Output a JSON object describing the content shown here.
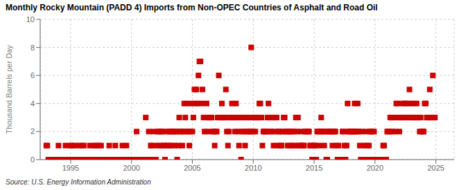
{
  "chart_data": {
    "type": "scatter",
    "title": "Monthly Rocky Mountain (PADD 4) Imports from Non-OPEC Countries of Asphalt and Road Oil",
    "y_label": "Thousand Barrels per Day",
    "annotations": [
      "Source: U.S. Energy Information Administration"
    ],
    "color": "#cc0000",
    "marker": "square",
    "grid": true,
    "xlim": [
      1992.5,
      2026.5
    ],
    "xticks": [
      1995,
      2000,
      2005,
      2010,
      2015,
      2020,
      2025
    ],
    "ylim": [
      0,
      10
    ],
    "yticks": [
      0,
      2,
      4,
      6,
      8,
      10
    ],
    "x": [
      1993.0,
      1993.08,
      1993.17,
      1993.25,
      1993.33,
      1993.42,
      1993.5,
      1993.58,
      1993.67,
      1993.75,
      1993.83,
      1993.92,
      1994.0,
      1994.08,
      1994.17,
      1994.25,
      1994.33,
      1994.42,
      1994.5,
      1994.58,
      1994.67,
      1994.75,
      1994.83,
      1994.92,
      1995.0,
      1995.08,
      1995.17,
      1995.25,
      1995.33,
      1995.42,
      1995.5,
      1995.58,
      1995.67,
      1995.75,
      1995.83,
      1995.92,
      1996.0,
      1996.08,
      1996.17,
      1996.25,
      1996.33,
      1996.42,
      1996.5,
      1996.58,
      1996.67,
      1996.75,
      1996.83,
      1996.92,
      1997.0,
      1997.08,
      1997.17,
      1997.25,
      1997.33,
      1997.42,
      1997.5,
      1997.58,
      1997.67,
      1997.75,
      1997.83,
      1997.92,
      1998.0,
      1998.08,
      1998.17,
      1998.25,
      1998.33,
      1998.42,
      1998.5,
      1998.58,
      1998.67,
      1998.75,
      1998.83,
      1998.92,
      1999.0,
      1999.08,
      1999.17,
      1999.25,
      1999.33,
      1999.42,
      1999.5,
      1999.58,
      1999.67,
      1999.75,
      1999.83,
      1999.92,
      2000.0,
      2000.08,
      2000.17,
      2000.25,
      2000.33,
      2000.42,
      2000.5,
      2000.58,
      2000.67,
      2000.75,
      2000.83,
      2000.92,
      2001.0,
      2001.08,
      2001.17,
      2001.25,
      2001.33,
      2001.42,
      2001.5,
      2001.58,
      2001.67,
      2001.75,
      2001.83,
      2001.92,
      2002.0,
      2002.08,
      2002.17,
      2002.25,
      2002.33,
      2002.42,
      2002.5,
      2002.58,
      2002.67,
      2002.75,
      2002.83,
      2002.92,
      2003.0,
      2003.08,
      2003.17,
      2003.25,
      2003.33,
      2003.42,
      2003.5,
      2003.58,
      2003.67,
      2003.75,
      2003.83,
      2003.92,
      2004.0,
      2004.08,
      2004.17,
      2004.25,
      2004.33,
      2004.42,
      2004.5,
      2004.58,
      2004.67,
      2004.75,
      2004.83,
      2004.92,
      2005.0,
      2005.08,
      2005.17,
      2005.25,
      2005.33,
      2005.42,
      2005.5,
      2005.58,
      2005.67,
      2005.75,
      2005.83,
      2005.92,
      2006.0,
      2006.08,
      2006.17,
      2006.25,
      2006.33,
      2006.42,
      2006.5,
      2006.58,
      2006.67,
      2006.75,
      2006.83,
      2006.92,
      2007.0,
      2007.08,
      2007.17,
      2007.25,
      2007.33,
      2007.42,
      2007.5,
      2007.58,
      2007.67,
      2007.75,
      2007.83,
      2007.92,
      2008.0,
      2008.08,
      2008.17,
      2008.25,
      2008.33,
      2008.42,
      2008.5,
      2008.58,
      2008.67,
      2008.75,
      2008.83,
      2008.92,
      2009.0,
      2009.08,
      2009.17,
      2009.25,
      2009.33,
      2009.42,
      2009.5,
      2009.58,
      2009.67,
      2009.75,
      2009.83,
      2009.92,
      2010.0,
      2010.08,
      2010.17,
      2010.25,
      2010.33,
      2010.42,
      2010.5,
      2010.58,
      2010.67,
      2010.75,
      2010.83,
      2010.92,
      2011.0,
      2011.08,
      2011.17,
      2011.25,
      2011.33,
      2011.42,
      2011.5,
      2011.58,
      2011.67,
      2011.75,
      2011.83,
      2011.92,
      2012.0,
      2012.08,
      2012.17,
      2012.25,
      2012.33,
      2012.42,
      2012.5,
      2012.58,
      2012.67,
      2012.75,
      2012.83,
      2012.92,
      2013.0,
      2013.08,
      2013.17,
      2013.25,
      2013.33,
      2013.42,
      2013.5,
      2013.58,
      2013.67,
      2013.75,
      2013.83,
      2013.92,
      2014.0,
      2014.08,
      2014.17,
      2014.25,
      2014.33,
      2014.42,
      2014.5,
      2014.58,
      2014.67,
      2014.75,
      2014.83,
      2014.92,
      2015.0,
      2015.08,
      2015.17,
      2015.25,
      2015.33,
      2015.42,
      2015.5,
      2015.58,
      2015.67,
      2015.75,
      2015.83,
      2015.92,
      2016.0,
      2016.08,
      2016.17,
      2016.25,
      2016.33,
      2016.42,
      2016.5,
      2016.58,
      2016.67,
      2016.75,
      2016.83,
      2016.92,
      2017.0,
      2017.08,
      2017.17,
      2017.25,
      2017.33,
      2017.42,
      2017.5,
      2017.58,
      2017.67,
      2017.75,
      2017.83,
      2017.92,
      2018.0,
      2018.08,
      2018.17,
      2018.25,
      2018.33,
      2018.42,
      2018.5,
      2018.58,
      2018.67,
      2018.75,
      2018.83,
      2018.92,
      2019.0,
      2019.08,
      2019.17,
      2019.25,
      2019.33,
      2019.42,
      2019.5,
      2019.58,
      2019.67,
      2019.75,
      2019.83,
      2019.92,
      2020.0,
      2020.08,
      2020.17,
      2020.25,
      2020.33,
      2020.42,
      2020.5,
      2020.58,
      2020.67,
      2020.75,
      2020.83,
      2020.92,
      2021.0,
      2021.08,
      2021.17,
      2021.25,
      2021.33,
      2021.42,
      2021.5,
      2021.58,
      2021.67,
      2021.75,
      2021.83,
      2021.92,
      2022.0,
      2022.08,
      2022.17,
      2022.25,
      2022.33,
      2022.42,
      2022.5,
      2022.58,
      2022.67,
      2022.75,
      2022.83,
      2022.92,
      2023.0,
      2023.08,
      2023.17,
      2023.25,
      2023.33,
      2023.42,
      2023.5,
      2023.58,
      2023.67,
      2023.75,
      2023.83,
      2023.92,
      2024.0,
      2024.08,
      2024.17,
      2024.25,
      2024.33,
      2024.42,
      2024.5,
      2024.58,
      2024.67,
      2024.75,
      2024.83,
      2024.92
    ],
    "values": [
      1,
      1,
      0,
      0,
      0,
      0,
      0,
      0,
      0,
      0,
      0,
      0,
      1,
      0,
      0,
      0,
      0,
      0,
      0,
      1,
      0,
      0,
      0,
      0,
      1,
      1,
      0,
      0,
      1,
      0,
      0,
      0,
      1,
      0,
      0,
      1,
      0,
      1,
      0,
      0,
      0,
      0,
      0,
      1,
      0,
      0,
      0,
      1,
      0,
      1,
      0,
      0,
      1,
      0,
      1,
      0,
      0,
      0,
      0,
      0,
      0,
      0,
      1,
      0,
      0,
      0,
      0,
      0,
      1,
      0,
      0,
      0,
      0,
      0,
      0,
      1,
      0,
      0,
      0,
      1,
      0,
      0,
      0,
      0,
      0,
      0,
      0,
      0,
      0,
      2,
      0,
      0,
      0,
      0,
      0,
      0,
      0,
      0,
      3,
      0,
      0,
      2,
      0,
      1,
      1,
      0,
      2,
      0,
      0,
      1,
      2,
      2,
      1,
      2,
      2,
      1,
      1,
      0,
      2,
      1,
      1,
      2,
      2,
      1,
      2,
      2,
      1,
      2,
      2,
      0,
      1,
      3,
      2,
      2,
      1,
      2,
      4,
      3,
      2,
      4,
      2,
      1,
      2,
      4,
      2,
      3,
      5,
      4,
      5,
      4,
      6,
      7,
      7,
      4,
      5,
      3,
      2,
      3,
      4,
      2,
      3,
      3,
      3,
      3,
      2,
      2,
      1,
      2,
      2,
      3,
      6,
      3,
      3,
      4,
      3,
      3,
      3,
      5,
      2,
      1,
      2,
      3,
      3,
      4,
      3,
      3,
      2,
      4,
      3,
      2,
      1,
      3,
      0,
      2,
      3,
      2,
      1,
      3,
      2,
      3,
      2,
      2,
      8,
      3,
      2,
      3,
      2,
      3,
      3,
      3,
      4,
      4,
      3,
      1,
      2,
      2,
      2,
      2,
      3,
      4,
      3,
      2,
      2,
      3,
      1,
      3,
      2,
      3,
      1,
      2,
      2,
      1,
      1,
      2,
      3,
      3,
      2,
      2,
      1,
      2,
      1,
      2,
      2,
      1,
      2,
      1,
      3,
      2,
      3,
      1,
      1,
      2,
      1,
      1,
      1,
      2,
      2,
      2,
      2,
      2,
      1,
      1,
      0,
      1,
      1,
      1,
      0,
      2,
      2,
      1,
      2,
      3,
      2,
      2,
      1,
      2,
      0,
      0,
      2,
      2,
      2,
      2,
      1,
      2,
      2,
      2,
      1,
      0,
      1,
      0,
      0,
      0,
      2,
      2,
      1,
      0,
      1,
      4,
      2,
      2,
      2,
      2,
      2,
      2,
      4,
      2,
      2,
      4,
      2,
      1,
      0,
      2,
      0,
      1,
      0,
      2,
      1,
      0,
      1,
      2,
      2,
      2,
      0,
      2,
      0,
      0,
      0,
      0,
      0,
      0,
      0,
      0,
      1,
      1,
      0,
      0,
      2,
      2,
      2,
      3,
      3,
      2,
      3,
      3,
      2,
      4,
      4,
      3,
      2,
      3,
      3,
      4,
      3,
      4,
      4,
      3,
      4,
      3,
      5,
      4,
      3,
      3,
      4,
      3,
      3,
      4,
      3,
      3,
      2,
      3,
      2,
      2,
      2,
      4,
      4,
      3,
      3,
      3,
      5,
      3,
      3,
      6,
      3,
      3
    ]
  }
}
